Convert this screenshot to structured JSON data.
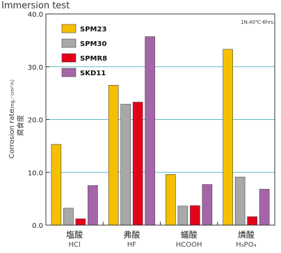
{
  "chart_data": {
    "type": "bar",
    "title": "Immersion test",
    "conditions": "1N,40℃-6hrs.",
    "ylabel": "Corrosion rate",
    "ylabel_unit": "（mg／cm²·h）",
    "ylabel_jp": "腐食度",
    "ylim": [
      0,
      40
    ],
    "yticks": [
      "0.0",
      "10.0",
      "20.0",
      "30.0",
      "40.0"
    ],
    "grid": true,
    "legend_position": "top-left",
    "categories_jp": [
      "塩酸",
      "弗酸",
      "蟻酸",
      "燐酸"
    ],
    "categories": [
      "HCl",
      "HF",
      "HCOOH",
      "H₃PO₄"
    ],
    "series": [
      {
        "name": "SPM23",
        "color": "#F5C000",
        "values": [
          15.3,
          26.5,
          9.6,
          33.3
        ]
      },
      {
        "name": "SPM30",
        "color": "#A8A8A8",
        "values": [
          3.2,
          22.9,
          3.6,
          9.1
        ]
      },
      {
        "name": "SPMR8",
        "color": "#E4001B",
        "values": [
          1.2,
          23.3,
          3.7,
          1.6
        ]
      },
      {
        "name": "SKD11",
        "color": "#A565A8",
        "values": [
          7.5,
          35.7,
          7.7,
          6.8
        ]
      }
    ],
    "grid_color": "#5BBCCB"
  }
}
